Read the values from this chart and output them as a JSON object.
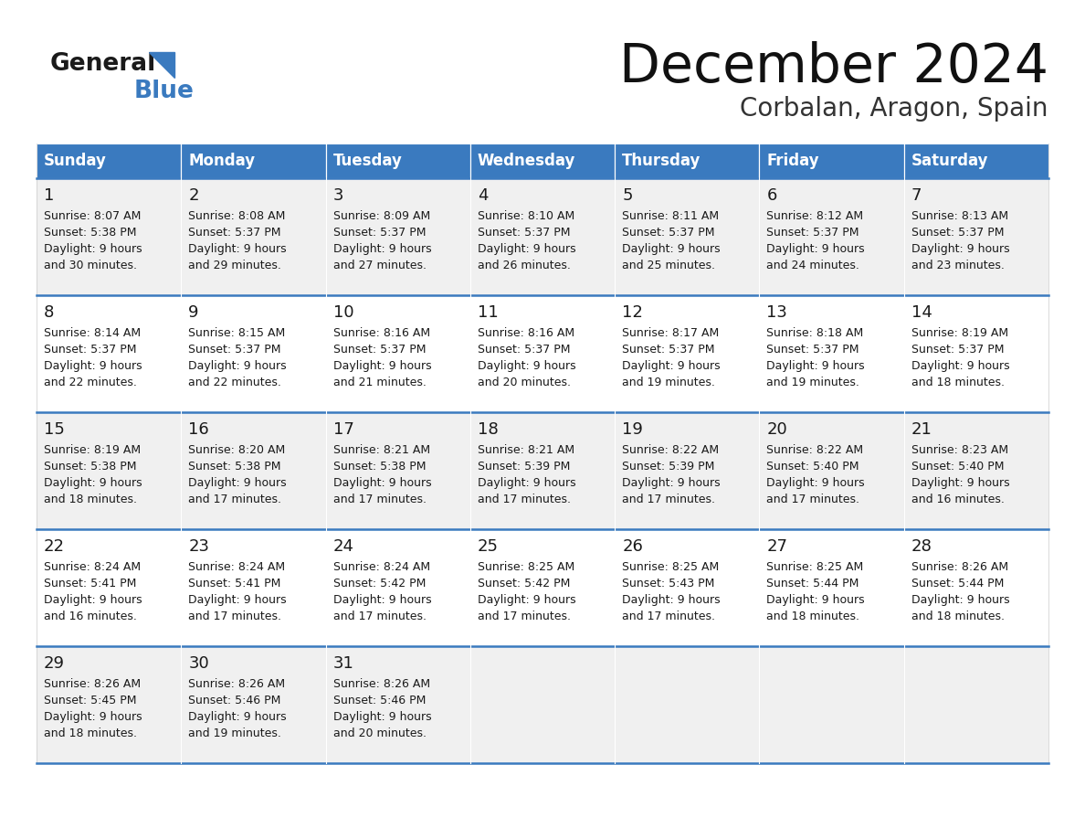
{
  "title": "December 2024",
  "subtitle": "Corbalan, Aragon, Spain",
  "header_color": "#3a7abf",
  "header_text_color": "#ffffff",
  "cell_bg_even": "#f0f0f0",
  "cell_bg_odd": "#ffffff",
  "border_color": "#3a7abf",
  "separator_color": "#cccccc",
  "text_color": "#1a1a1a",
  "days_of_week": [
    "Sunday",
    "Monday",
    "Tuesday",
    "Wednesday",
    "Thursday",
    "Friday",
    "Saturday"
  ],
  "fig_width": 11.88,
  "fig_height": 9.18,
  "dpi": 100,
  "logo_general_color": "#1a1a1a",
  "logo_blue_color": "#3a7abf",
  "logo_triangle_color": "#3a7abf",
  "calendar_data": [
    [
      {
        "day": 1,
        "sunrise": "8:07 AM",
        "sunset": "5:38 PM",
        "daylight_line1": "9 hours",
        "daylight_line2": "and 30 minutes."
      },
      {
        "day": 2,
        "sunrise": "8:08 AM",
        "sunset": "5:37 PM",
        "daylight_line1": "9 hours",
        "daylight_line2": "and 29 minutes."
      },
      {
        "day": 3,
        "sunrise": "8:09 AM",
        "sunset": "5:37 PM",
        "daylight_line1": "9 hours",
        "daylight_line2": "and 27 minutes."
      },
      {
        "day": 4,
        "sunrise": "8:10 AM",
        "sunset": "5:37 PM",
        "daylight_line1": "9 hours",
        "daylight_line2": "and 26 minutes."
      },
      {
        "day": 5,
        "sunrise": "8:11 AM",
        "sunset": "5:37 PM",
        "daylight_line1": "9 hours",
        "daylight_line2": "and 25 minutes."
      },
      {
        "day": 6,
        "sunrise": "8:12 AM",
        "sunset": "5:37 PM",
        "daylight_line1": "9 hours",
        "daylight_line2": "and 24 minutes."
      },
      {
        "day": 7,
        "sunrise": "8:13 AM",
        "sunset": "5:37 PM",
        "daylight_line1": "9 hours",
        "daylight_line2": "and 23 minutes."
      }
    ],
    [
      {
        "day": 8,
        "sunrise": "8:14 AM",
        "sunset": "5:37 PM",
        "daylight_line1": "9 hours",
        "daylight_line2": "and 22 minutes."
      },
      {
        "day": 9,
        "sunrise": "8:15 AM",
        "sunset": "5:37 PM",
        "daylight_line1": "9 hours",
        "daylight_line2": "and 22 minutes."
      },
      {
        "day": 10,
        "sunrise": "8:16 AM",
        "sunset": "5:37 PM",
        "daylight_line1": "9 hours",
        "daylight_line2": "and 21 minutes."
      },
      {
        "day": 11,
        "sunrise": "8:16 AM",
        "sunset": "5:37 PM",
        "daylight_line1": "9 hours",
        "daylight_line2": "and 20 minutes."
      },
      {
        "day": 12,
        "sunrise": "8:17 AM",
        "sunset": "5:37 PM",
        "daylight_line1": "9 hours",
        "daylight_line2": "and 19 minutes."
      },
      {
        "day": 13,
        "sunrise": "8:18 AM",
        "sunset": "5:37 PM",
        "daylight_line1": "9 hours",
        "daylight_line2": "and 19 minutes."
      },
      {
        "day": 14,
        "sunrise": "8:19 AM",
        "sunset": "5:37 PM",
        "daylight_line1": "9 hours",
        "daylight_line2": "and 18 minutes."
      }
    ],
    [
      {
        "day": 15,
        "sunrise": "8:19 AM",
        "sunset": "5:38 PM",
        "daylight_line1": "9 hours",
        "daylight_line2": "and 18 minutes."
      },
      {
        "day": 16,
        "sunrise": "8:20 AM",
        "sunset": "5:38 PM",
        "daylight_line1": "9 hours",
        "daylight_line2": "and 17 minutes."
      },
      {
        "day": 17,
        "sunrise": "8:21 AM",
        "sunset": "5:38 PM",
        "daylight_line1": "9 hours",
        "daylight_line2": "and 17 minutes."
      },
      {
        "day": 18,
        "sunrise": "8:21 AM",
        "sunset": "5:39 PM",
        "daylight_line1": "9 hours",
        "daylight_line2": "and 17 minutes."
      },
      {
        "day": 19,
        "sunrise": "8:22 AM",
        "sunset": "5:39 PM",
        "daylight_line1": "9 hours",
        "daylight_line2": "and 17 minutes."
      },
      {
        "day": 20,
        "sunrise": "8:22 AM",
        "sunset": "5:40 PM",
        "daylight_line1": "9 hours",
        "daylight_line2": "and 17 minutes."
      },
      {
        "day": 21,
        "sunrise": "8:23 AM",
        "sunset": "5:40 PM",
        "daylight_line1": "9 hours",
        "daylight_line2": "and 16 minutes."
      }
    ],
    [
      {
        "day": 22,
        "sunrise": "8:24 AM",
        "sunset": "5:41 PM",
        "daylight_line1": "9 hours",
        "daylight_line2": "and 16 minutes."
      },
      {
        "day": 23,
        "sunrise": "8:24 AM",
        "sunset": "5:41 PM",
        "daylight_line1": "9 hours",
        "daylight_line2": "and 17 minutes."
      },
      {
        "day": 24,
        "sunrise": "8:24 AM",
        "sunset": "5:42 PM",
        "daylight_line1": "9 hours",
        "daylight_line2": "and 17 minutes."
      },
      {
        "day": 25,
        "sunrise": "8:25 AM",
        "sunset": "5:42 PM",
        "daylight_line1": "9 hours",
        "daylight_line2": "and 17 minutes."
      },
      {
        "day": 26,
        "sunrise": "8:25 AM",
        "sunset": "5:43 PM",
        "daylight_line1": "9 hours",
        "daylight_line2": "and 17 minutes."
      },
      {
        "day": 27,
        "sunrise": "8:25 AM",
        "sunset": "5:44 PM",
        "daylight_line1": "9 hours",
        "daylight_line2": "and 18 minutes."
      },
      {
        "day": 28,
        "sunrise": "8:26 AM",
        "sunset": "5:44 PM",
        "daylight_line1": "9 hours",
        "daylight_line2": "and 18 minutes."
      }
    ],
    [
      {
        "day": 29,
        "sunrise": "8:26 AM",
        "sunset": "5:45 PM",
        "daylight_line1": "9 hours",
        "daylight_line2": "and 18 minutes."
      },
      {
        "day": 30,
        "sunrise": "8:26 AM",
        "sunset": "5:46 PM",
        "daylight_line1": "9 hours",
        "daylight_line2": "and 19 minutes."
      },
      {
        "day": 31,
        "sunrise": "8:26 AM",
        "sunset": "5:46 PM",
        "daylight_line1": "9 hours",
        "daylight_line2": "and 20 minutes."
      },
      null,
      null,
      null,
      null
    ]
  ]
}
